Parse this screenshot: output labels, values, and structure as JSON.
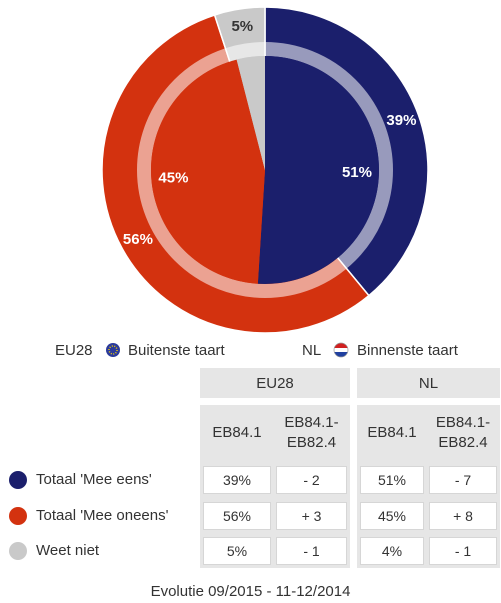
{
  "chart_data": {
    "type": "pie",
    "categories": [
      "Totaal 'Mee eens'",
      "Totaal 'Mee oneens'",
      "Weet niet"
    ],
    "colors": [
      "#1b1f6c",
      "#d3320f",
      "#c9c9c9"
    ],
    "series": [
      {
        "name": "EU28",
        "ring": "Buitenste taart",
        "values": [
          39,
          56,
          5
        ],
        "value_labels": [
          "39%",
          "56%",
          "5%"
        ]
      },
      {
        "name": "NL",
        "ring": "Binnenste taart",
        "values": [
          51,
          45,
          4
        ],
        "value_labels": [
          "51%",
          "45%",
          null
        ]
      }
    ]
  },
  "table": {
    "groups": [
      "EU28",
      "NL"
    ],
    "columns": [
      "EB84.1",
      "EB84.1-EB82.4",
      "EB84.1",
      "EB84.1-EB82.4"
    ],
    "rows": [
      [
        "39%",
        "- 2",
        "51%",
        "- 7"
      ],
      [
        "56%",
        "+ 3",
        "45%",
        "+ 8"
      ],
      [
        "5%",
        "- 1",
        "4%",
        "- 1"
      ]
    ]
  },
  "footer": "Evolutie 09/2015 - 11-12/2014"
}
